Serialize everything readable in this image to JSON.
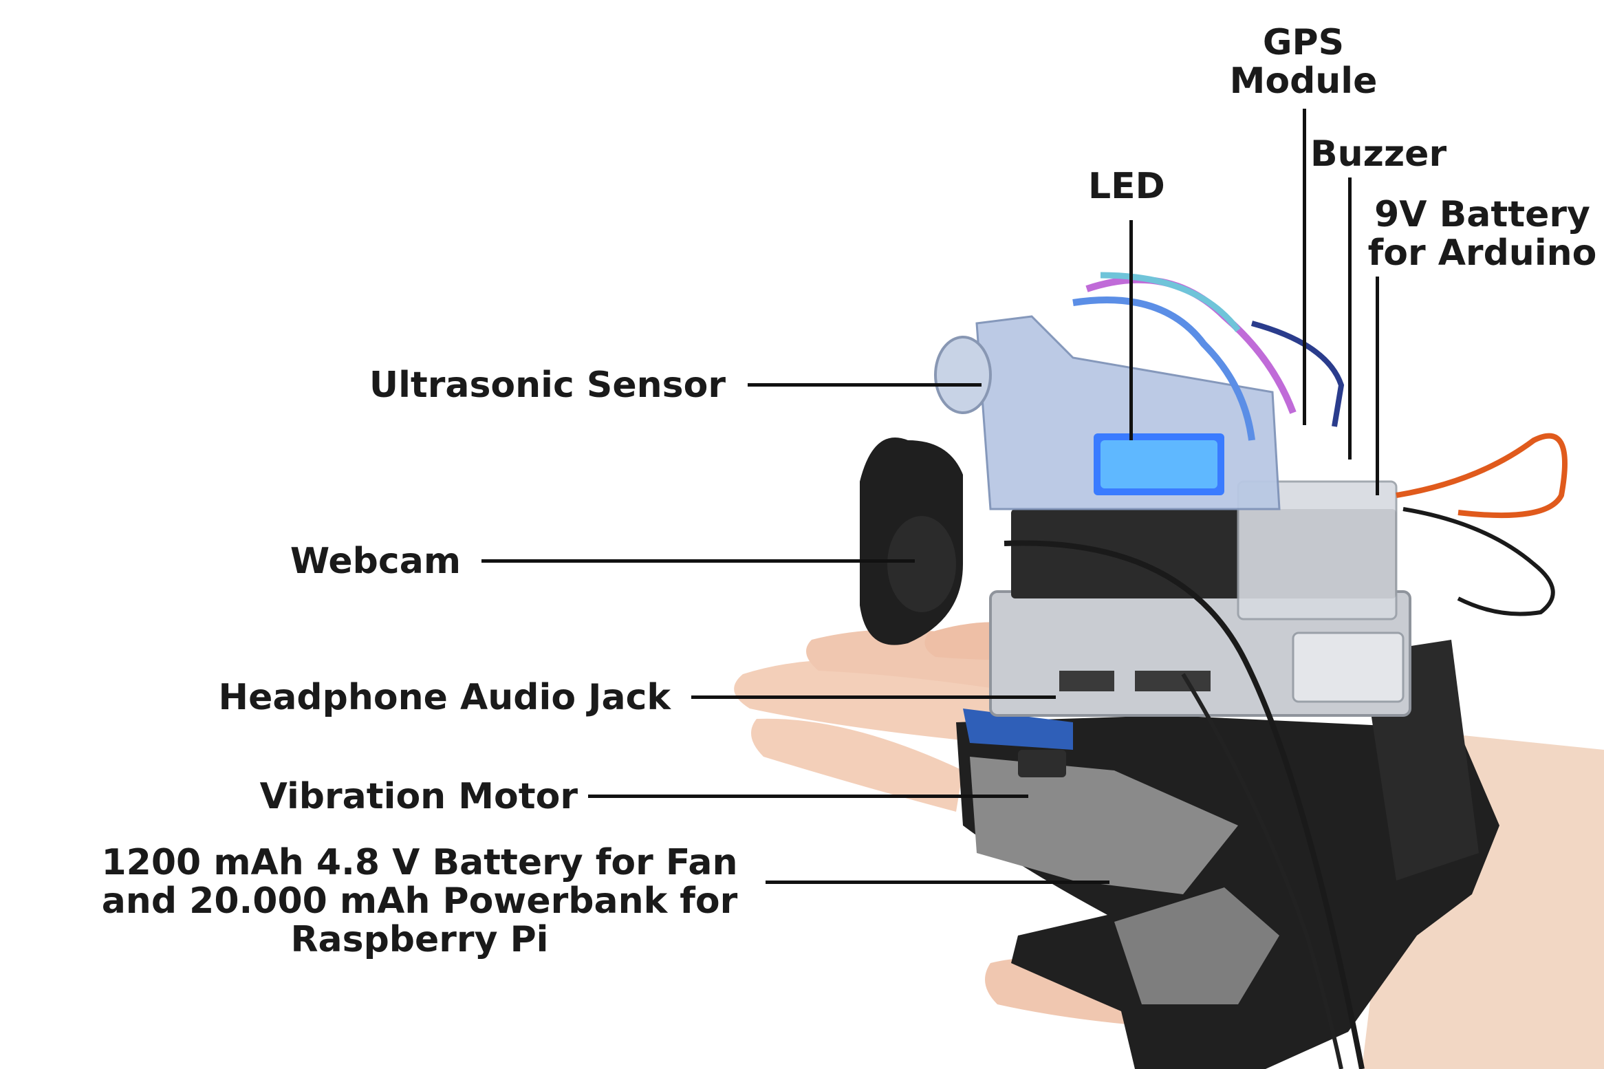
{
  "annotations": {
    "gps": {
      "line1": "GPS",
      "line2": "Module"
    },
    "buzzer": {
      "text": "Buzzer"
    },
    "led": {
      "text": "LED"
    },
    "battery9v": {
      "line1": "9V Battery",
      "line2": "for Arduino"
    },
    "ultrasonic": {
      "text": "Ultrasonic Sensor"
    },
    "webcam": {
      "text": "Webcam"
    },
    "audio_jack": {
      "text": "Headphone Audio Jack"
    },
    "vibration": {
      "text": "Vibration Motor"
    },
    "battery_fan": {
      "line1": "1200 mAh 4.8 V  Battery for  Fan",
      "line2": "and 20.000 mAh Powerbank for",
      "line3": "Raspberry Pi"
    }
  }
}
